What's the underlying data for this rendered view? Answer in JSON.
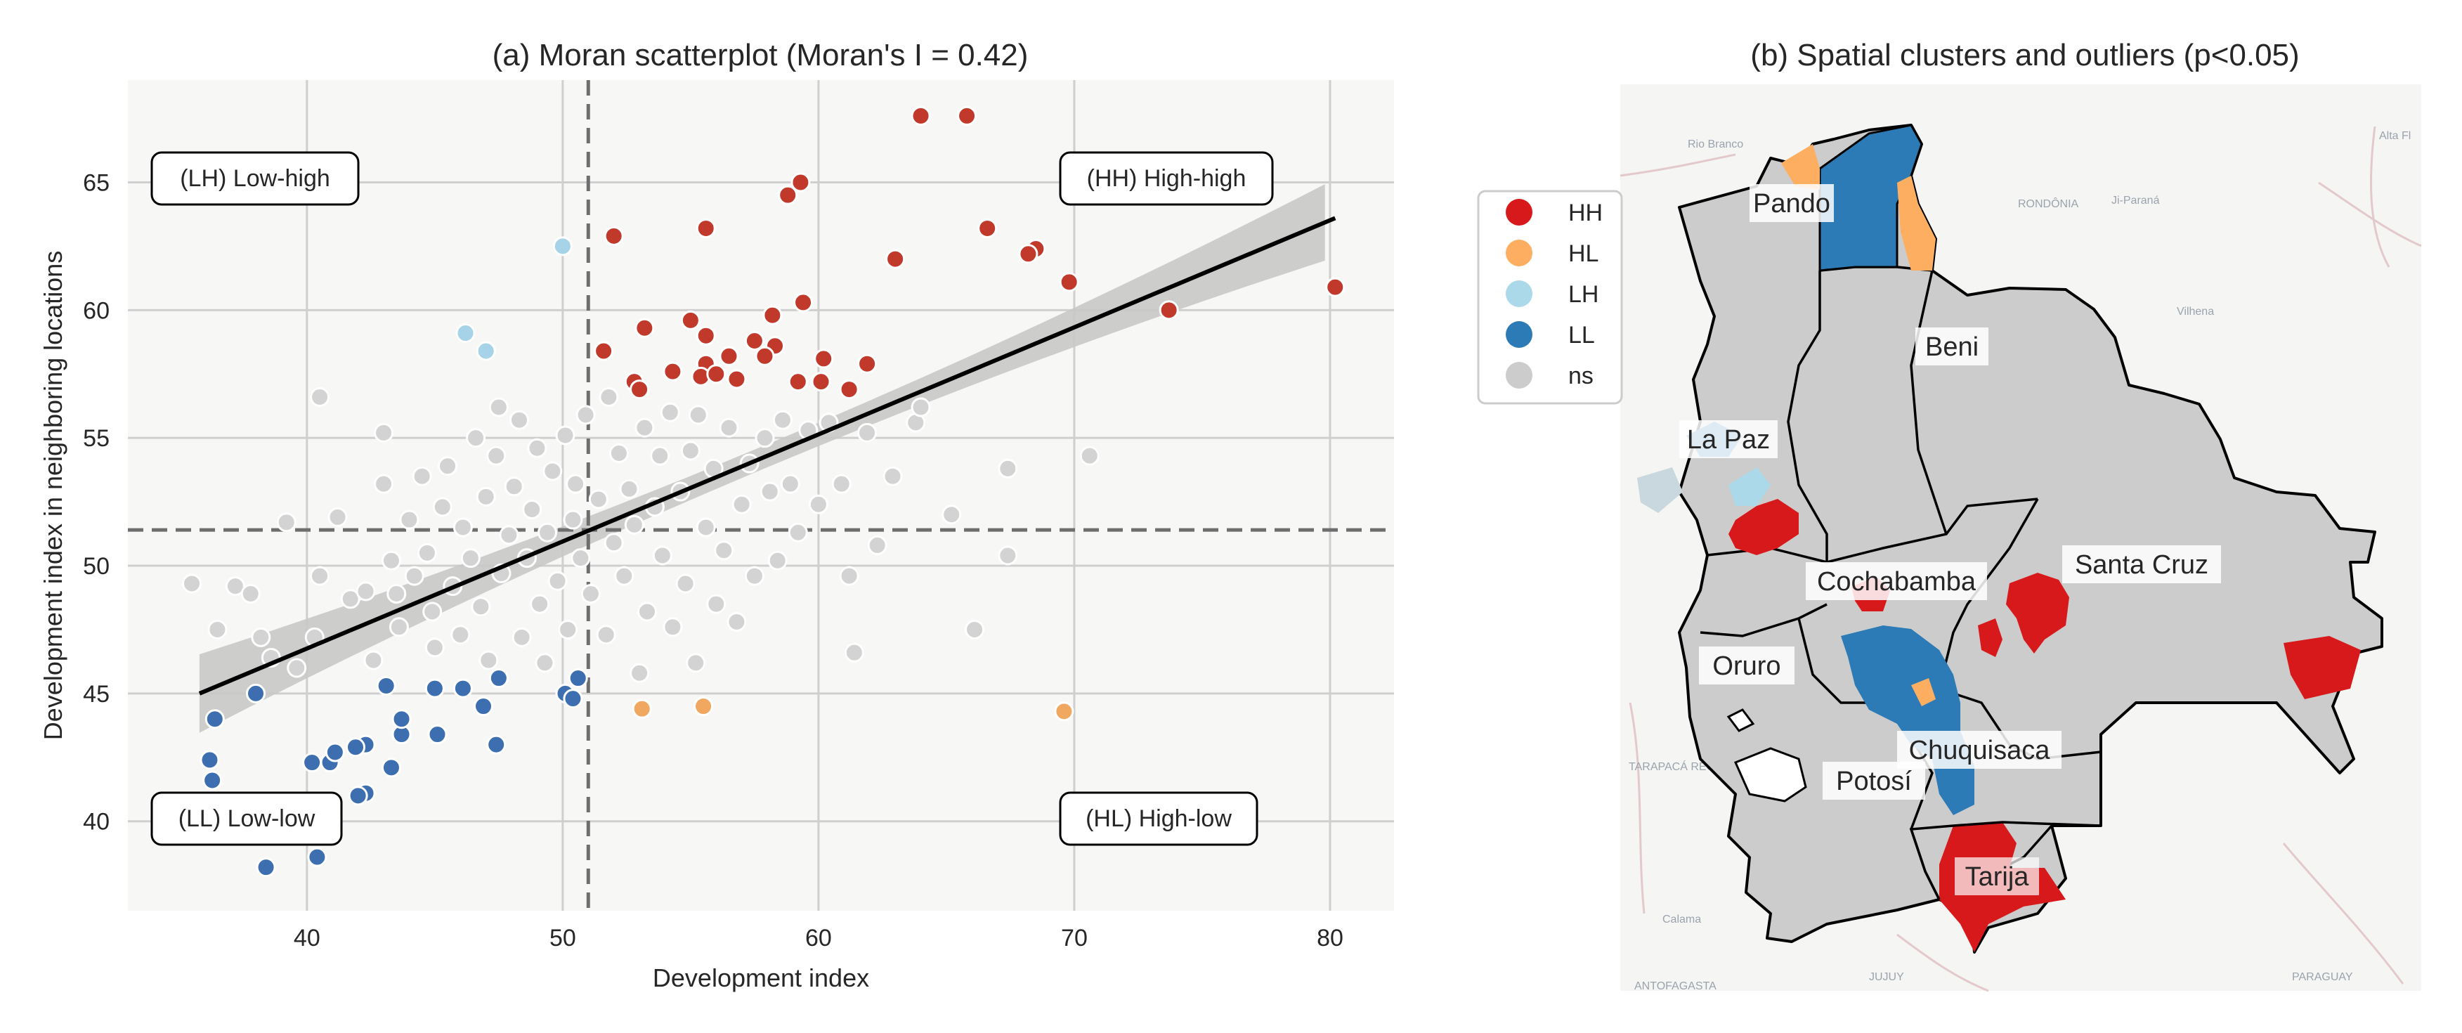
{
  "chart_data": [
    {
      "type": "scatter",
      "title": "(a) Moran scatterplot (Moran's I = 0.42)",
      "xlabel": "Development index",
      "ylabel": "Development index in neighboring locations",
      "xlim": [
        33,
        82.5
      ],
      "ylim": [
        36.5,
        69
      ],
      "xticks": [
        40,
        50,
        60,
        70,
        80
      ],
      "yticks": [
        40,
        45,
        50,
        55,
        60,
        65
      ],
      "grid": true,
      "mean_x": 51.0,
      "mean_y": 51.4,
      "regression": {
        "x": [
          35.8,
          80.2
        ],
        "y": [
          45.0,
          63.6
        ]
      },
      "quadrant_labels": [
        "(LH) Low-high",
        "(HH) High-high",
        "(LL) Low-low",
        "(HL) High-low"
      ],
      "colors": {
        "HH": "#c0392b",
        "HL": "#f0a860",
        "LH": "#a6d3e8",
        "LL": "#3d6fb0",
        "ns": "#d3d3d3",
        "band": "#c8c8c8",
        "line": "#000000",
        "background": "#f7f7f5"
      },
      "series": [
        {
          "name": "HH",
          "points": [
            [
              64.0,
              67.6
            ],
            [
              65.8,
              67.6
            ],
            [
              59.3,
              65.0
            ],
            [
              58.8,
              64.5
            ],
            [
              66.6,
              63.2
            ],
            [
              68.5,
              62.4
            ],
            [
              68.2,
              62.2
            ],
            [
              55.6,
              63.2
            ],
            [
              52.0,
              62.9
            ],
            [
              63.0,
              62.0
            ],
            [
              69.8,
              61.1
            ],
            [
              80.2,
              60.9
            ],
            [
              59.4,
              60.3
            ],
            [
              73.7,
              60.0
            ],
            [
              55.0,
              59.6
            ],
            [
              58.2,
              59.8
            ],
            [
              53.2,
              59.3
            ],
            [
              55.6,
              59.0
            ],
            [
              57.5,
              58.8
            ],
            [
              58.3,
              58.6
            ],
            [
              51.6,
              58.4
            ],
            [
              56.5,
              58.2
            ],
            [
              57.9,
              58.2
            ],
            [
              60.2,
              58.1
            ],
            [
              61.9,
              57.9
            ],
            [
              54.3,
              57.6
            ],
            [
              55.6,
              57.9
            ],
            [
              55.4,
              57.4
            ],
            [
              56.0,
              57.5
            ],
            [
              56.8,
              57.3
            ],
            [
              52.8,
              57.2
            ],
            [
              53.0,
              56.9
            ],
            [
              59.2,
              57.2
            ],
            [
              60.1,
              57.2
            ],
            [
              61.2,
              56.9
            ]
          ]
        },
        {
          "name": "HL",
          "points": [
            [
              53.1,
              44.4
            ],
            [
              55.5,
              44.5
            ],
            [
              69.6,
              44.3
            ]
          ]
        },
        {
          "name": "LH",
          "points": [
            [
              50.0,
              62.5
            ],
            [
              46.2,
              59.1
            ],
            [
              47.0,
              58.4
            ]
          ]
        },
        {
          "name": "LL",
          "points": [
            [
              36.4,
              44.0
            ],
            [
              38.0,
              45.0
            ],
            [
              36.2,
              42.4
            ],
            [
              36.3,
              41.6
            ],
            [
              40.2,
              42.3
            ],
            [
              40.9,
              42.3
            ],
            [
              41.1,
              42.7
            ],
            [
              42.3,
              43.0
            ],
            [
              41.9,
              42.9
            ],
            [
              42.3,
              41.1
            ],
            [
              43.3,
              42.1
            ],
            [
              43.7,
              43.4
            ],
            [
              43.7,
              44.0
            ],
            [
              43.1,
              45.3
            ],
            [
              45.0,
              45.2
            ],
            [
              46.1,
              45.2
            ],
            [
              46.9,
              44.5
            ],
            [
              45.1,
              43.4
            ],
            [
              47.4,
              43.0
            ],
            [
              47.5,
              45.6
            ],
            [
              50.1,
              45.0
            ],
            [
              50.4,
              44.8
            ],
            [
              50.6,
              45.6
            ],
            [
              38.4,
              38.2
            ],
            [
              40.4,
              38.6
            ],
            [
              42.0,
              41.0
            ]
          ]
        },
        {
          "name": "ns",
          "points": [
            [
              35.5,
              49.3
            ],
            [
              36.5,
              47.5
            ],
            [
              37.2,
              49.2
            ],
            [
              37.8,
              48.9
            ],
            [
              38.2,
              47.2
            ],
            [
              38.6,
              46.4
            ],
            [
              39.2,
              51.7
            ],
            [
              39.6,
              46.0
            ],
            [
              40.3,
              47.2
            ],
            [
              40.5,
              49.6
            ],
            [
              40.5,
              56.6
            ],
            [
              41.2,
              51.9
            ],
            [
              41.7,
              48.7
            ],
            [
              42.3,
              49.0
            ],
            [
              42.6,
              46.3
            ],
            [
              43.0,
              53.2
            ],
            [
              43.0,
              55.2
            ],
            [
              43.3,
              50.2
            ],
            [
              43.5,
              48.9
            ],
            [
              43.6,
              47.6
            ],
            [
              44.0,
              51.8
            ],
            [
              44.2,
              49.6
            ],
            [
              44.5,
              53.5
            ],
            [
              44.7,
              50.5
            ],
            [
              44.9,
              48.2
            ],
            [
              45.0,
              46.8
            ],
            [
              45.3,
              52.3
            ],
            [
              45.5,
              53.9
            ],
            [
              45.7,
              49.2
            ],
            [
              46.0,
              47.3
            ],
            [
              46.1,
              51.5
            ],
            [
              46.4,
              50.3
            ],
            [
              46.6,
              55.0
            ],
            [
              46.8,
              48.4
            ],
            [
              47.0,
              52.7
            ],
            [
              47.1,
              46.3
            ],
            [
              47.4,
              54.3
            ],
            [
              47.5,
              56.2
            ],
            [
              47.6,
              49.7
            ],
            [
              47.9,
              51.2
            ],
            [
              48.1,
              53.1
            ],
            [
              48.3,
              55.7
            ],
            [
              48.4,
              47.2
            ],
            [
              48.6,
              50.3
            ],
            [
              48.8,
              52.2
            ],
            [
              49.0,
              54.6
            ],
            [
              49.1,
              48.5
            ],
            [
              49.3,
              46.2
            ],
            [
              49.4,
              51.3
            ],
            [
              49.6,
              53.7
            ],
            [
              49.8,
              49.4
            ],
            [
              50.1,
              55.1
            ],
            [
              50.2,
              47.5
            ],
            [
              50.4,
              51.8
            ],
            [
              50.5,
              53.2
            ],
            [
              50.7,
              50.3
            ],
            [
              50.9,
              55.9
            ],
            [
              51.1,
              48.9
            ],
            [
              51.4,
              52.6
            ],
            [
              51.7,
              47.3
            ],
            [
              51.8,
              56.6
            ],
            [
              52.0,
              50.9
            ],
            [
              52.2,
              54.4
            ],
            [
              52.4,
              49.6
            ],
            [
              52.6,
              53.0
            ],
            [
              52.8,
              51.6
            ],
            [
              53.0,
              45.8
            ],
            [
              53.2,
              55.4
            ],
            [
              53.3,
              48.2
            ],
            [
              53.6,
              52.3
            ],
            [
              53.8,
              54.3
            ],
            [
              53.9,
              50.4
            ],
            [
              54.2,
              56.0
            ],
            [
              54.3,
              47.6
            ],
            [
              54.6,
              52.9
            ],
            [
              54.8,
              49.3
            ],
            [
              55.0,
              54.5
            ],
            [
              55.2,
              46.2
            ],
            [
              55.3,
              55.9
            ],
            [
              55.6,
              51.5
            ],
            [
              55.9,
              53.8
            ],
            [
              56.0,
              48.5
            ],
            [
              56.3,
              50.6
            ],
            [
              56.5,
              55.4
            ],
            [
              56.8,
              47.8
            ],
            [
              57.0,
              52.4
            ],
            [
              57.3,
              54.0
            ],
            [
              57.5,
              49.6
            ],
            [
              57.9,
              55.0
            ],
            [
              58.1,
              52.9
            ],
            [
              58.4,
              50.2
            ],
            [
              58.6,
              55.7
            ],
            [
              58.9,
              53.2
            ],
            [
              59.2,
              51.3
            ],
            [
              59.6,
              55.3
            ],
            [
              60.0,
              52.4
            ],
            [
              60.4,
              55.6
            ],
            [
              60.9,
              53.2
            ],
            [
              61.2,
              49.6
            ],
            [
              61.4,
              46.6
            ],
            [
              61.9,
              55.2
            ],
            [
              62.3,
              50.8
            ],
            [
              62.9,
              53.5
            ],
            [
              63.8,
              55.6
            ],
            [
              64.0,
              56.2
            ],
            [
              65.2,
              52.0
            ],
            [
              66.1,
              47.5
            ],
            [
              67.4,
              53.8
            ],
            [
              67.4,
              50.4
            ],
            [
              70.6,
              54.3
            ]
          ]
        }
      ]
    },
    {
      "type": "map",
      "title": "(b) Spatial clusters and outliers (p<0.05)",
      "legend": [
        "HH",
        "HL",
        "LH",
        "LL",
        "ns"
      ],
      "legend_position": "top-left",
      "legend_colors": [
        "#d7191c",
        "#fdae61",
        "#abd9e9",
        "#2c7bb6",
        "#cccccc"
      ],
      "region_labels": [
        "Pando",
        "Beni",
        "La Paz",
        "Santa Cruz",
        "Cochabamba",
        "Oruro",
        "Chuquisaca",
        "Potosí",
        "Tarija"
      ],
      "basemap_labels": [
        "Rio Branco",
        "RONDÔNIA",
        "Ji-Paraná",
        "Alta Fl",
        "Vilhena",
        "TARAPACÁ REGION",
        "Calama",
        "ANTOFAGASTA",
        "JUJUY",
        "PARAGUAY"
      ]
    }
  ]
}
